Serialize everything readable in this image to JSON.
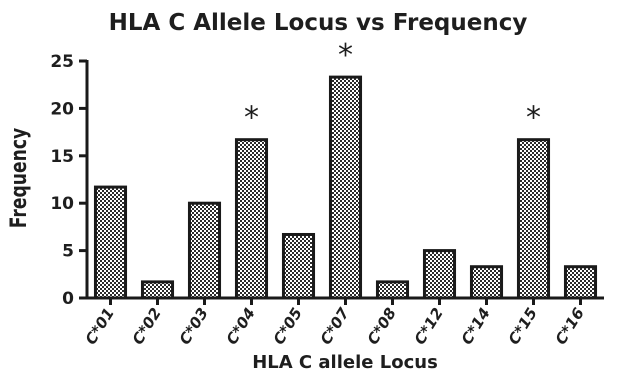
{
  "chart_data": {
    "type": "bar",
    "title": "HLA C Allele Locus vs Frequency",
    "xlabel": "HLA C allele Locus",
    "ylabel": "Frequency",
    "categories": [
      "C*01",
      "C*02",
      "C*03",
      "C*04",
      "C*05",
      "C*07",
      "C*08",
      "C*12",
      "C*14",
      "C*15",
      "C*16"
    ],
    "values": [
      11.7,
      1.7,
      10.0,
      16.7,
      6.7,
      23.3,
      1.7,
      5.0,
      3.3,
      16.7,
      3.3
    ],
    "annotations": [
      "",
      "",
      "",
      "*",
      "",
      "*",
      "",
      "",
      "",
      "*",
      ""
    ],
    "yticks": [
      0,
      5,
      10,
      15,
      20,
      25
    ],
    "ylim": [
      0,
      25
    ],
    "grid": false,
    "legend": "none",
    "colors": {
      "bar_fill": "#ffffff",
      "bar_pattern": "#2b2b2b",
      "bar_stroke": "#1a1a1a",
      "axis": "#1a1a1a",
      "text": "#1e1e1e"
    }
  }
}
